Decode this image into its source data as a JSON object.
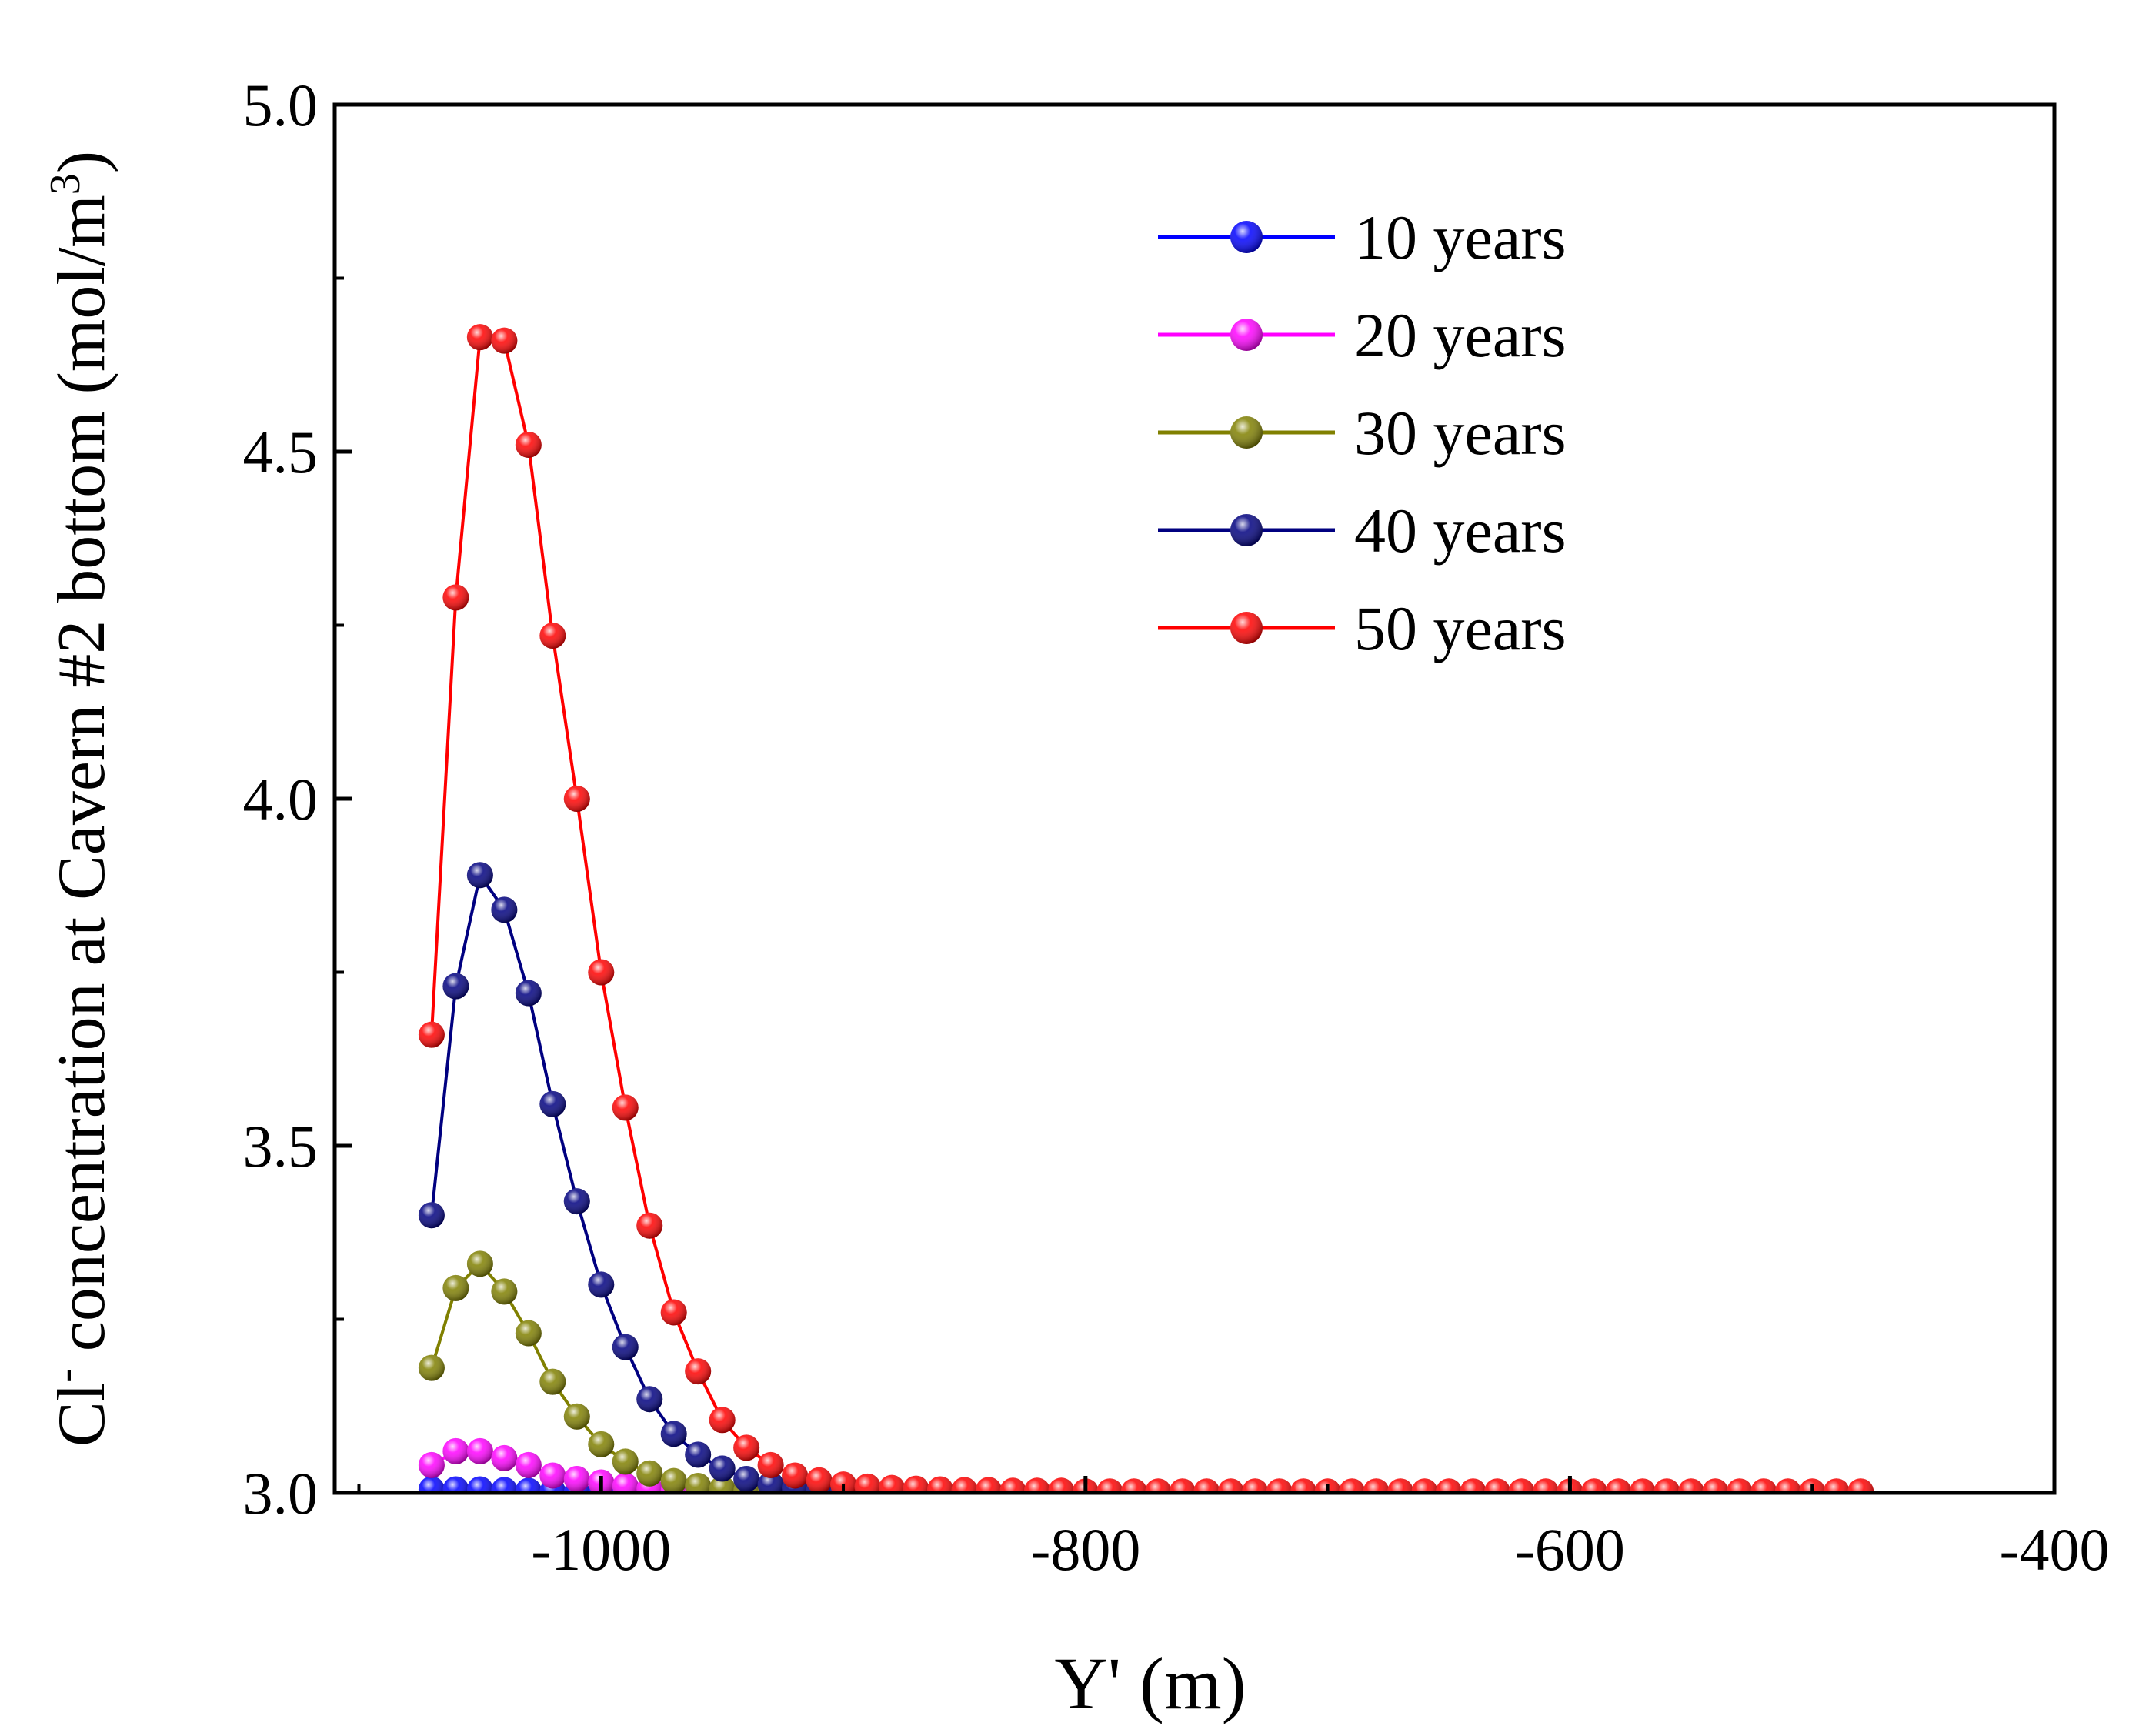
{
  "chart_data": {
    "type": "line",
    "title": "",
    "xlabel": "Y' (m)",
    "ylabel_main": "Cl",
    "ylabel_sup": "-",
    "ylabel_mid": " concentration at Cavern #2 bottom  (mol/m",
    "ylabel_exp": "3",
    "ylabel_end": ")",
    "xlim": [
      -1110,
      -400
    ],
    "ylim": [
      3.0,
      5.0
    ],
    "xticks": [
      -1000,
      -800,
      -600,
      -400
    ],
    "xtick_labels": [
      "-1000",
      "-800",
      "-600",
      "-400"
    ],
    "yticks": [
      3.0,
      3.5,
      4.0,
      4.5,
      5.0
    ],
    "ytick_labels": [
      "3.0",
      "3.5",
      "4.0",
      "4.5",
      "5.0"
    ],
    "legend_position": "top-right",
    "x": [
      -1070,
      -1060,
      -1050,
      -1040,
      -1030,
      -1020,
      -1010,
      -1000,
      -990,
      -980,
      -970,
      -960,
      -950,
      -940,
      -930,
      -920,
      -910,
      -900,
      -890,
      -880,
      -870,
      -860,
      -850,
      -840,
      -830,
      -820,
      -810,
      -800,
      -790,
      -780,
      -770,
      -760,
      -750,
      -740,
      -730,
      -720,
      -710,
      -700,
      -690,
      -680,
      -670,
      -660,
      -650,
      -640,
      -630,
      -620,
      -610,
      -600,
      -590,
      -580,
      -570,
      -560,
      -550,
      -540,
      -530,
      -520,
      -510,
      -500,
      -490,
      -480
    ],
    "series": [
      {
        "name": "10 years",
        "color": "#0000ff",
        "values": [
          3.005,
          3.005,
          3.005,
          3.004,
          3.003,
          3.002,
          3.001,
          3.0,
          3.0,
          3.0,
          3.0,
          3.0,
          3.0,
          3.0,
          3.0,
          3.0,
          3.0,
          3.0,
          3.0,
          3.0,
          3.0,
          3.0,
          3.0,
          3.0,
          3.0,
          3.0,
          3.0,
          3.0,
          3.0,
          3.0,
          3.0,
          3.0,
          3.0,
          3.0,
          3.0,
          3.0,
          3.0,
          3.0,
          3.0,
          3.0,
          3.0,
          3.0,
          3.0,
          3.0,
          3.0,
          3.0,
          3.0,
          3.0,
          3.0,
          3.0,
          3.0,
          3.0,
          3.0,
          3.0,
          3.0,
          3.0,
          3.0,
          3.0,
          3.0,
          3.0
        ]
      },
      {
        "name": "20 years",
        "color": "#ff00ff",
        "values": [
          3.04,
          3.06,
          3.06,
          3.05,
          3.04,
          3.025,
          3.02,
          3.015,
          3.01,
          3.006,
          3.003,
          3.002,
          3.001,
          3.0,
          3.0,
          3.0,
          3.0,
          3.0,
          3.0,
          3.0,
          3.0,
          3.0,
          3.0,
          3.0,
          3.0,
          3.0,
          3.0,
          3.0,
          3.0,
          3.0,
          3.0,
          3.0,
          3.0,
          3.0,
          3.0,
          3.0,
          3.0,
          3.0,
          3.0,
          3.0,
          3.0,
          3.0,
          3.0,
          3.0,
          3.0,
          3.0,
          3.0,
          3.0,
          3.0,
          3.0,
          3.0,
          3.0,
          3.0,
          3.0,
          3.0,
          3.0,
          3.0,
          3.0,
          3.0,
          3.0
        ]
      },
      {
        "name": "30 years",
        "color": "#808000",
        "values": [
          3.18,
          3.295,
          3.33,
          3.29,
          3.23,
          3.16,
          3.11,
          3.07,
          3.045,
          3.028,
          3.017,
          3.01,
          3.006,
          3.003,
          3.002,
          3.001,
          3.0,
          3.0,
          3.0,
          3.0,
          3.0,
          3.0,
          3.0,
          3.0,
          3.0,
          3.0,
          3.0,
          3.0,
          3.0,
          3.0,
          3.0,
          3.0,
          3.0,
          3.0,
          3.0,
          3.0,
          3.0,
          3.0,
          3.0,
          3.0,
          3.0,
          3.0,
          3.0,
          3.0,
          3.0,
          3.0,
          3.0,
          3.0,
          3.0,
          3.0,
          3.0,
          3.0,
          3.0,
          3.0,
          3.0,
          3.0,
          3.0,
          3.0,
          3.0,
          3.0
        ]
      },
      {
        "name": "40 years",
        "color": "#000080",
        "values": [
          3.4,
          3.73,
          3.89,
          3.84,
          3.72,
          3.56,
          3.42,
          3.3,
          3.21,
          3.135,
          3.085,
          3.055,
          3.035,
          3.02,
          3.012,
          3.007,
          3.004,
          3.002,
          3.001,
          3.0,
          3.0,
          3.0,
          3.0,
          3.0,
          3.0,
          3.0,
          3.0,
          3.0,
          3.0,
          3.0,
          3.0,
          3.0,
          3.0,
          3.0,
          3.0,
          3.0,
          3.0,
          3.0,
          3.0,
          3.0,
          3.0,
          3.0,
          3.0,
          3.0,
          3.0,
          3.0,
          3.0,
          3.0,
          3.0,
          3.0,
          3.0,
          3.0,
          3.0,
          3.0,
          3.0,
          3.0,
          3.0,
          3.0,
          3.0,
          3.0
        ]
      },
      {
        "name": "50 years",
        "color": "#ff0000",
        "values": [
          3.66,
          4.29,
          4.665,
          4.66,
          4.51,
          4.235,
          4.0,
          3.75,
          3.555,
          3.385,
          3.26,
          3.175,
          3.105,
          3.065,
          3.04,
          3.025,
          3.018,
          3.012,
          3.009,
          3.007,
          3.006,
          3.005,
          3.004,
          3.004,
          3.003,
          3.003,
          3.003,
          3.002,
          3.002,
          3.002,
          3.002,
          3.002,
          3.002,
          3.002,
          3.002,
          3.002,
          3.002,
          3.002,
          3.002,
          3.002,
          3.002,
          3.002,
          3.002,
          3.002,
          3.002,
          3.002,
          3.002,
          3.002,
          3.002,
          3.002,
          3.002,
          3.002,
          3.002,
          3.002,
          3.002,
          3.002,
          3.002,
          3.002,
          3.002,
          3.002
        ]
      }
    ]
  }
}
